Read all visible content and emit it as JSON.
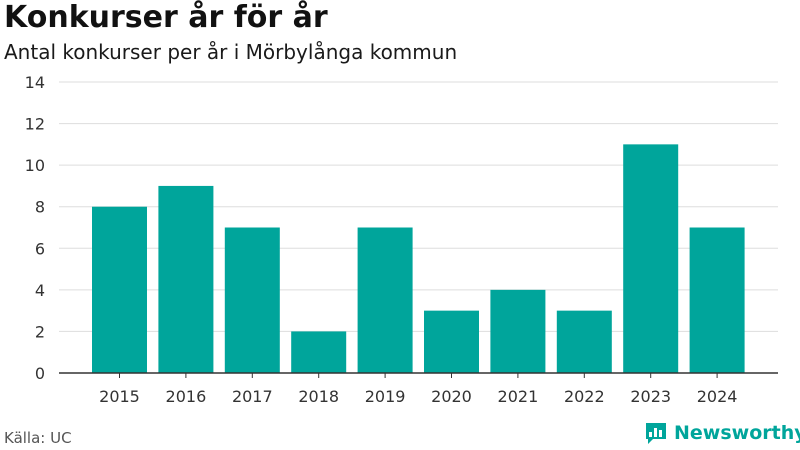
{
  "header": {
    "title": "Konkurser år för år",
    "subtitle": "Antal konkurser per år i Mörbylånga kommun"
  },
  "footer": {
    "source": "Källa: UC",
    "brand": "Newsworthy",
    "brand_icon": "bar-chart-speech-bubble-icon"
  },
  "colors": {
    "bar": "#00a59b",
    "grid": "#dddddd",
    "axis": "#333333",
    "brand": "#00a59b"
  },
  "chart_data": {
    "type": "bar",
    "title": "Konkurser år för år",
    "subtitle": "Antal konkurser per år i Mörbylånga kommun",
    "categories": [
      "2015",
      "2016",
      "2017",
      "2018",
      "2019",
      "2020",
      "2021",
      "2022",
      "2023",
      "2024"
    ],
    "values": [
      8,
      9,
      7,
      2,
      7,
      3,
      4,
      3,
      11,
      7
    ],
    "xlabel": "",
    "ylabel": "",
    "ylim": [
      0,
      14
    ],
    "yticks": [
      0,
      2,
      4,
      6,
      8,
      10,
      12,
      14
    ],
    "grid": true,
    "legend": "none"
  }
}
